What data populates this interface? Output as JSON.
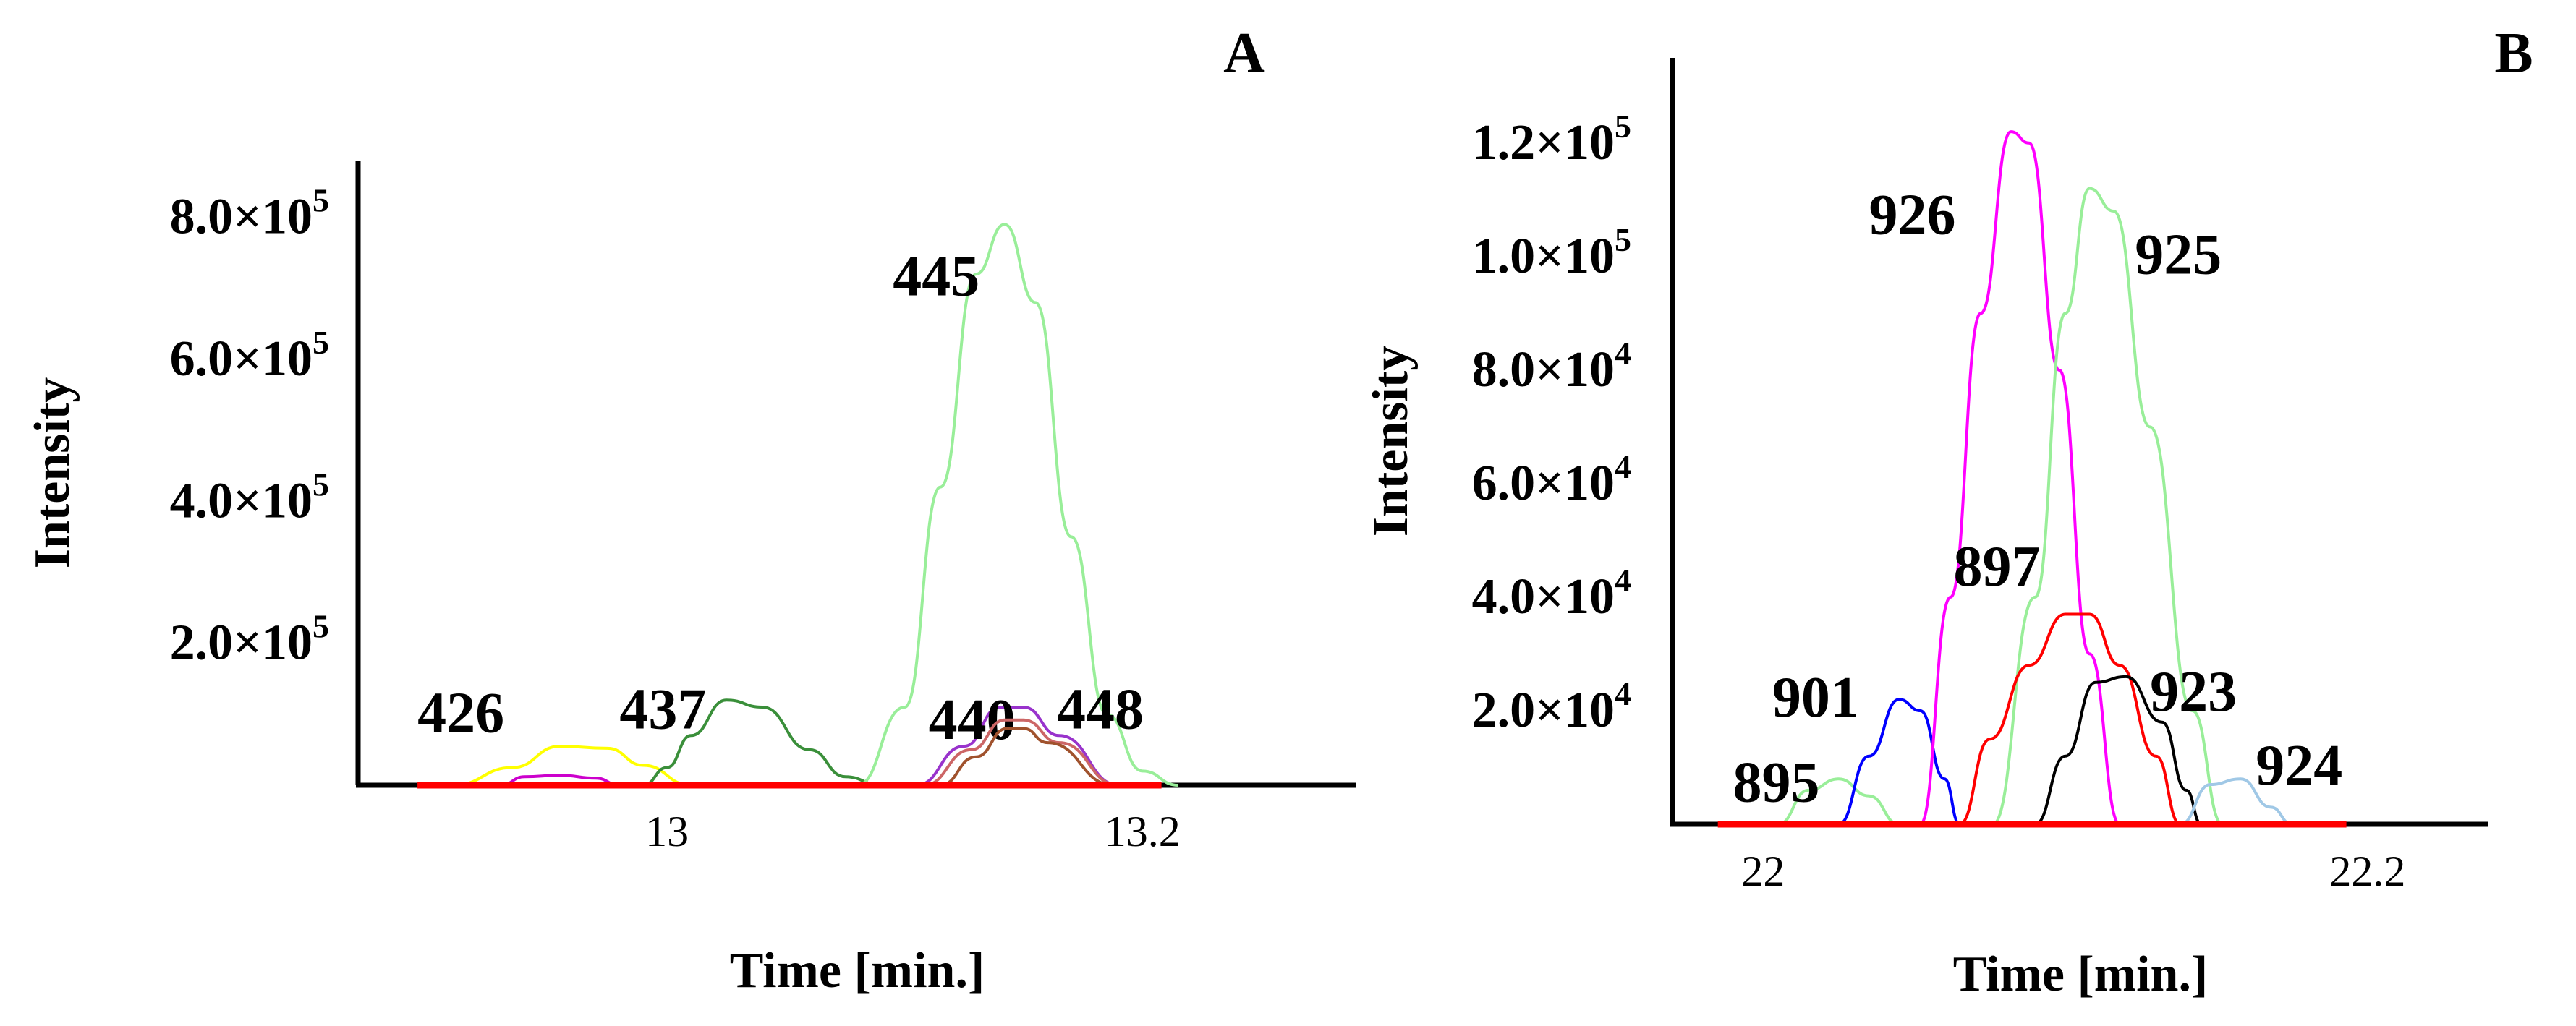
{
  "chart_data": [
    {
      "type": "line",
      "panel": "A",
      "xlabel": "Time [min.]",
      "ylabel": "Intensity",
      "xlim": [
        12.87,
        13.29
      ],
      "ylim": [
        0,
        880000
      ],
      "xticks": [
        {
          "value": 13,
          "label": "13"
        },
        {
          "value": 13.2,
          "label": "13.2"
        }
      ],
      "yticks": [
        {
          "value": 200000,
          "mantissa": "2.0",
          "exp": "5"
        },
        {
          "value": 400000,
          "mantissa": "4.0",
          "exp": "5"
        },
        {
          "value": 600000,
          "mantissa": "6.0",
          "exp": "5"
        },
        {
          "value": 800000,
          "mantissa": "8.0",
          "exp": "5"
        }
      ],
      "times_label": "×10",
      "series": [
        {
          "name": "426",
          "color": "#ffff00",
          "label_at": [
            12.895,
            75000
          ],
          "points": [
            [
              12.91,
              0
            ],
            [
              12.935,
              25000
            ],
            [
              12.955,
              55000
            ],
            [
              12.975,
              52000
            ],
            [
              12.99,
              28000
            ],
            [
              13.01,
              0
            ]
          ]
        },
        {
          "name": "",
          "color": "#cc00cc",
          "points": [
            [
              12.93,
              0
            ],
            [
              12.94,
              12000
            ],
            [
              12.955,
              14000
            ],
            [
              12.97,
              10000
            ],
            [
              12.98,
              0
            ]
          ]
        },
        {
          "name": "437",
          "color": "#3a8f3a",
          "label_at": [
            12.98,
            80000
          ],
          "points": [
            [
              12.99,
              0
            ],
            [
              13.0,
              25000
            ],
            [
              13.01,
              70000
            ],
            [
              13.025,
              120000
            ],
            [
              13.04,
              110000
            ],
            [
              13.06,
              50000
            ],
            [
              13.075,
              12000
            ],
            [
              13.09,
              0
            ]
          ]
        },
        {
          "name": "445",
          "color": "#99ee99",
          "label_at": [
            13.095,
            690000
          ],
          "points": [
            [
              13.08,
              0
            ],
            [
              13.1,
              110000
            ],
            [
              13.115,
              420000
            ],
            [
              13.13,
              720000
            ],
            [
              13.142,
              790000
            ],
            [
              13.155,
              680000
            ],
            [
              13.17,
              350000
            ],
            [
              13.185,
              100000
            ],
            [
              13.2,
              20000
            ],
            [
              13.215,
              0
            ]
          ]
        },
        {
          "name": "440",
          "color": "#9933cc",
          "label_at": [
            13.11,
            65000
          ],
          "points": [
            [
              13.105,
              0
            ],
            [
              13.125,
              55000
            ],
            [
              13.14,
              110000
            ],
            [
              13.15,
              110000
            ],
            [
              13.165,
              70000
            ],
            [
              13.19,
              0
            ]
          ]
        },
        {
          "name": "",
          "color": "#cc6666",
          "points": [
            [
              13.108,
              0
            ],
            [
              13.128,
              50000
            ],
            [
              13.142,
              92000
            ],
            [
              13.15,
              92000
            ],
            [
              13.165,
              60000
            ],
            [
              13.19,
              0
            ]
          ]
        },
        {
          "name": "448",
          "color": "#a0522d",
          "label_at": [
            13.164,
            80000
          ],
          "points": [
            [
              13.115,
              0
            ],
            [
              13.13,
              40000
            ],
            [
              13.143,
              80000
            ],
            [
              13.15,
              80000
            ],
            [
              13.16,
              60000
            ],
            [
              13.188,
              0
            ]
          ]
        },
        {
          "name": "",
          "color": "#ff0000",
          "baseline": true,
          "points": [
            [
              12.895,
              0
            ],
            [
              13.208,
              0
            ]
          ]
        }
      ]
    },
    {
      "type": "line",
      "panel": "B",
      "xlabel": "Time [min.]",
      "ylabel": "Intensity",
      "xlim": [
        21.97,
        22.24
      ],
      "ylim": [
        0,
        135000
      ],
      "xticks": [
        {
          "value": 22,
          "label": "22"
        },
        {
          "value": 22.2,
          "label": "22.2"
        }
      ],
      "yticks": [
        {
          "value": 20000,
          "mantissa": "2.0",
          "exp": "4"
        },
        {
          "value": 40000,
          "mantissa": "4.0",
          "exp": "4"
        },
        {
          "value": 60000,
          "mantissa": "6.0",
          "exp": "4"
        },
        {
          "value": 80000,
          "mantissa": "8.0",
          "exp": "4"
        },
        {
          "value": 100000,
          "mantissa": "1.0",
          "exp": "5"
        },
        {
          "value": 120000,
          "mantissa": "1.2",
          "exp": "5"
        }
      ],
      "times_label": "×10",
      "series": [
        {
          "name": "895",
          "color": "#99ee99",
          "label_at": [
            21.99,
            4000
          ],
          "points": [
            [
              22.005,
              0
            ],
            [
              22.015,
              6000
            ],
            [
              22.025,
              8000
            ],
            [
              22.035,
              5000
            ],
            [
              22.045,
              0
            ]
          ]
        },
        {
          "name": "901",
          "color": "#0000ff",
          "label_at": [
            22.003,
            19000
          ],
          "points": [
            [
              22.025,
              0
            ],
            [
              22.035,
              12000
            ],
            [
              22.045,
              22000
            ],
            [
              22.052,
              20000
            ],
            [
              22.06,
              8000
            ],
            [
              22.065,
              0
            ]
          ]
        },
        {
          "name": "926",
          "color": "#ff00ff",
          "label_at": [
            22.035,
            104000
          ],
          "points": [
            [
              22.052,
              0
            ],
            [
              22.062,
              40000
            ],
            [
              22.072,
              90000
            ],
            [
              22.082,
              122000
            ],
            [
              22.088,
              120000
            ],
            [
              22.098,
              80000
            ],
            [
              22.108,
              30000
            ],
            [
              22.118,
              0
            ]
          ]
        },
        {
          "name": "925",
          "color": "#99ee99",
          "label_at": [
            22.123,
            97000
          ],
          "points": [
            [
              22.076,
              0
            ],
            [
              22.09,
              40000
            ],
            [
              22.1,
              90000
            ],
            [
              22.108,
              112000
            ],
            [
              22.116,
              108000
            ],
            [
              22.128,
              70000
            ],
            [
              22.142,
              20000
            ],
            [
              22.152,
              0
            ]
          ]
        },
        {
          "name": "897",
          "color": "#ff0000",
          "label_at": [
            22.063,
            42000
          ],
          "points": [
            [
              22.065,
              0
            ],
            [
              22.075,
              15000
            ],
            [
              22.088,
              28000
            ],
            [
              22.1,
              37000
            ],
            [
              22.108,
              37000
            ],
            [
              22.118,
              28000
            ],
            [
              22.13,
              12000
            ],
            [
              22.138,
              0
            ]
          ]
        },
        {
          "name": "923",
          "color": "#000000",
          "label_at": [
            22.128,
            20000
          ],
          "points": [
            [
              22.09,
              0
            ],
            [
              22.1,
              12000
            ],
            [
              22.11,
              25000
            ],
            [
              22.12,
              26000
            ],
            [
              22.132,
              18000
            ],
            [
              22.14,
              6000
            ],
            [
              22.145,
              0
            ]
          ]
        },
        {
          "name": "924",
          "color": "#a0c8e6",
          "label_at": [
            22.163,
            7000
          ],
          "points": [
            [
              22.138,
              0
            ],
            [
              22.148,
              7000
            ],
            [
              22.158,
              8000
            ],
            [
              22.168,
              3000
            ],
            [
              22.175,
              0
            ]
          ]
        },
        {
          "name": "",
          "color": "#ff0000",
          "baseline": true,
          "points": [
            [
              21.985,
              0
            ],
            [
              22.193,
              0
            ]
          ]
        }
      ]
    }
  ]
}
